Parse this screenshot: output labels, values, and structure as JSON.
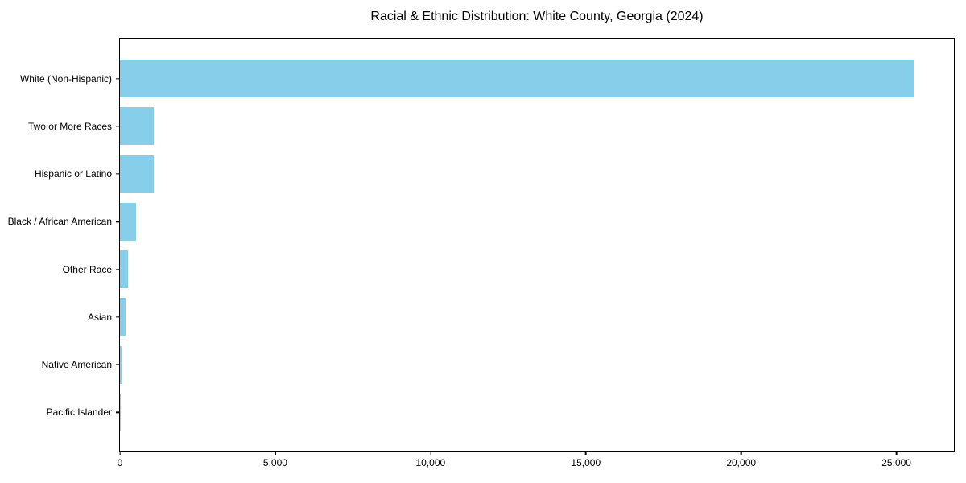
{
  "chart_data": {
    "type": "bar",
    "orientation": "horizontal",
    "title": "Racial & Ethnic Distribution: White County, Georgia (2024)",
    "categories": [
      "White (Non-Hispanic)",
      "Two or More Races",
      "Hispanic or Latino",
      "Black / African American",
      "Other Race",
      "Asian",
      "Native American",
      "Pacific Islander"
    ],
    "values": [
      25570,
      1100,
      1095,
      525,
      270,
      170,
      65,
      20
    ],
    "xlabel": "",
    "ylabel": "",
    "xlim": [
      0,
      26850
    ],
    "x_ticks": [
      0,
      5000,
      10000,
      15000,
      20000,
      25000
    ],
    "x_tick_labels": [
      "0",
      "5,000",
      "10,000",
      "15,000",
      "20,000",
      "25,000"
    ],
    "grid": false,
    "legend": null,
    "bar_color": "#87CEEB",
    "spine_color": "#000000",
    "text_color": "#000000",
    "background_color": "#ffffff"
  }
}
